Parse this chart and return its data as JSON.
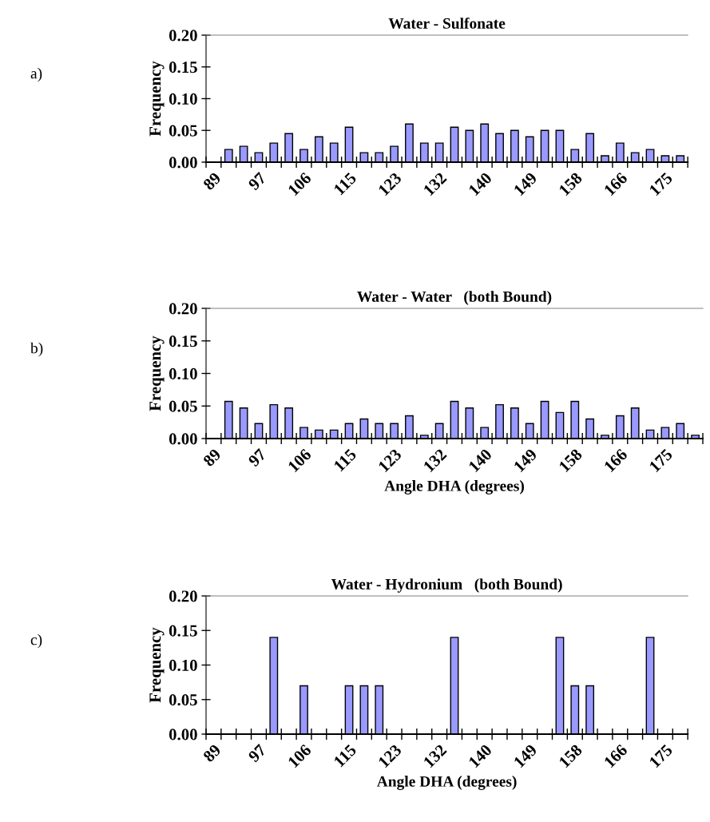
{
  "chart_data": [
    {
      "type": "bar",
      "title": "Water - Sulfonate",
      "ylabel": "Frequency",
      "annotations": [
        "a)"
      ],
      "categories": [
        "89",
        null,
        null,
        "97",
        null,
        null,
        "106",
        null,
        null,
        "115",
        null,
        null,
        "123",
        null,
        null,
        "132",
        null,
        null,
        "140",
        null,
        null,
        "149",
        null,
        null,
        "158",
        null,
        null,
        "166",
        null,
        null,
        "175",
        null
      ],
      "values": [
        null,
        0.02,
        0.025,
        0.015,
        0.03,
        0.045,
        0.02,
        0.04,
        0.03,
        0.055,
        0.015,
        0.015,
        0.025,
        0.06,
        0.03,
        0.03,
        0.055,
        0.05,
        0.06,
        0.045,
        0.05,
        0.04,
        0.05,
        0.05,
        0.02,
        0.045,
        0.01,
        0.03,
        0.015,
        0.02,
        0.01,
        0.01
      ],
      "color": "#9999ff",
      "ylim": [
        0,
        0.2
      ],
      "yticks": [
        {
          "value": 0,
          "label": "0.00"
        },
        {
          "value": 0.05,
          "label": "0.05"
        },
        {
          "value": 0.1,
          "label": "0.10"
        },
        {
          "value": 0.15,
          "label": "0.15"
        },
        {
          "value": 0.2,
          "label": "0.20"
        }
      ],
      "grid": false,
      "legend": false
    },
    {
      "type": "bar",
      "title": "Water - Water   (both Bound)",
      "ylabel": "Frequency",
      "xlabel": "Angle DHA (degrees)",
      "annotations": [
        "b)"
      ],
      "categories": [
        "89",
        null,
        null,
        "97",
        null,
        null,
        "106",
        null,
        null,
        "115",
        null,
        null,
        "123",
        null,
        null,
        "132",
        null,
        null,
        "140",
        null,
        null,
        "149",
        null,
        null,
        "158",
        null,
        null,
        "166",
        null,
        null,
        "175",
        null,
        null
      ],
      "values": [
        null,
        0.057,
        0.047,
        0.023,
        0.052,
        0.047,
        0.017,
        0.013,
        0.013,
        0.023,
        0.03,
        0.023,
        0.023,
        0.035,
        0.005,
        0.023,
        0.057,
        0.047,
        0.017,
        0.052,
        0.047,
        0.023,
        0.057,
        0.04,
        0.057,
        0.03,
        0.005,
        0.035,
        0.047,
        0.013,
        0.017,
        0.023,
        0.005
      ],
      "color": "#9999ff",
      "ylim": [
        0,
        0.2
      ],
      "yticks": [
        {
          "value": 0,
          "label": "0.00"
        },
        {
          "value": 0.05,
          "label": "0.05"
        },
        {
          "value": 0.1,
          "label": "0.10"
        },
        {
          "value": 0.15,
          "label": "0.15"
        },
        {
          "value": 0.2,
          "label": "0.20"
        }
      ],
      "grid": false,
      "legend": false
    },
    {
      "type": "bar",
      "title": "Water - Hydronium   (both Bound)",
      "ylabel": "Frequency",
      "xlabel": "Angle DHA (degrees)",
      "annotations": [
        "c)"
      ],
      "categories": [
        "89",
        null,
        null,
        "97",
        null,
        null,
        "106",
        null,
        null,
        "115",
        null,
        null,
        "123",
        null,
        null,
        "132",
        null,
        null,
        "140",
        null,
        null,
        "149",
        null,
        null,
        "158",
        null,
        null,
        "166",
        null,
        null,
        "175",
        null
      ],
      "values": [
        null,
        null,
        null,
        null,
        0.14,
        null,
        0.07,
        null,
        null,
        0.07,
        0.07,
        0.07,
        null,
        null,
        null,
        null,
        0.14,
        null,
        null,
        null,
        null,
        null,
        null,
        0.14,
        0.07,
        0.07,
        null,
        null,
        null,
        0.14,
        null,
        null
      ],
      "color": "#9999ff",
      "ylim": [
        0,
        0.2
      ],
      "yticks": [
        {
          "value": 0,
          "label": "0.00"
        },
        {
          "value": 0.05,
          "label": "0.05"
        },
        {
          "value": 0.1,
          "label": "0.10"
        },
        {
          "value": 0.15,
          "label": "0.15"
        },
        {
          "value": 0.2,
          "label": "0.20"
        }
      ],
      "grid": false,
      "legend": false
    }
  ]
}
